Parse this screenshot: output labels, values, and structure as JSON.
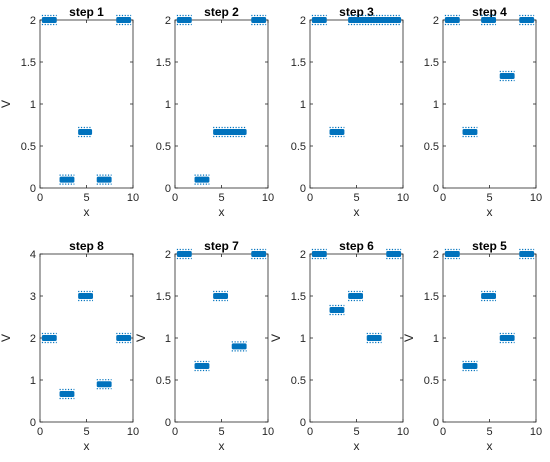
{
  "chart_data": [
    {
      "type": "scatter",
      "title": "step 1",
      "xlabel": "x",
      "ylabel": "V",
      "xlim": [
        0,
        10
      ],
      "ylim": [
        0,
        2
      ],
      "xticks": [
        "0",
        "5",
        "10"
      ],
      "yticks": [
        "0",
        "0.5",
        "1",
        "1.5",
        "2"
      ],
      "segments": [
        {
          "x": [
            0.2,
            1.8
          ],
          "y": 2
        },
        {
          "x": [
            2.1,
            3.7
          ],
          "y": 0.1
        },
        {
          "x": [
            4.1,
            5.6
          ],
          "y": 0.667
        },
        {
          "x": [
            6.1,
            7.7
          ],
          "y": 0.1
        },
        {
          "x": [
            8.2,
            9.8
          ],
          "y": 2
        }
      ],
      "marker_color": "#0072BD"
    },
    {
      "type": "scatter",
      "title": "step 2",
      "xlabel": "x",
      "ylabel": "",
      "xlim": [
        0,
        10
      ],
      "ylim": [
        0,
        2
      ],
      "xticks": [
        "0",
        "5",
        "10"
      ],
      "yticks": [
        "0",
        "0.5",
        "1",
        "1.5",
        "2"
      ],
      "segments": [
        {
          "x": [
            0.2,
            1.8
          ],
          "y": 2
        },
        {
          "x": [
            2.1,
            3.7
          ],
          "y": 0.1
        },
        {
          "x": [
            4.1,
            7.7
          ],
          "y": 0.667
        },
        {
          "x": [
            8.2,
            9.8
          ],
          "y": 2
        }
      ],
      "marker_color": "#0072BD"
    },
    {
      "type": "scatter",
      "title": "step 3",
      "xlabel": "x",
      "ylabel": "",
      "xlim": [
        0,
        10
      ],
      "ylim": [
        0,
        2
      ],
      "xticks": [
        "0",
        "5",
        "10"
      ],
      "yticks": [
        "0",
        "0.5",
        "1",
        "1.5",
        "2"
      ],
      "segments": [
        {
          "x": [
            0.2,
            1.8
          ],
          "y": 2
        },
        {
          "x": [
            2.1,
            3.7
          ],
          "y": 0.667
        },
        {
          "x": [
            4.1,
            9.8
          ],
          "y": 2
        }
      ],
      "marker_color": "#0072BD"
    },
    {
      "type": "scatter",
      "title": "step 4",
      "xlabel": "x",
      "ylabel": "",
      "xlim": [
        0,
        10
      ],
      "ylim": [
        0,
        2
      ],
      "xticks": [
        "0",
        "5",
        "10"
      ],
      "yticks": [
        "0",
        "0.5",
        "1",
        "1.5",
        "2"
      ],
      "segments": [
        {
          "x": [
            0.2,
            1.8
          ],
          "y": 2
        },
        {
          "x": [
            2.1,
            3.7
          ],
          "y": 0.667
        },
        {
          "x": [
            4.1,
            5.7
          ],
          "y": 2
        },
        {
          "x": [
            6.1,
            7.7
          ],
          "y": 1.333
        },
        {
          "x": [
            8.2,
            9.8
          ],
          "y": 2
        }
      ],
      "marker_color": "#0072BD"
    },
    {
      "type": "scatter",
      "title": "step 8",
      "xlabel": "x",
      "ylabel": "V",
      "xlim": [
        0,
        10
      ],
      "ylim": [
        0,
        4
      ],
      "xticks": [
        "0",
        "5",
        "10"
      ],
      "yticks": [
        "0",
        "1",
        "2",
        "3",
        "4"
      ],
      "segments": [
        {
          "x": [
            0.2,
            1.8
          ],
          "y": 2
        },
        {
          "x": [
            2.1,
            3.7
          ],
          "y": 0.667
        },
        {
          "x": [
            4.1,
            5.7
          ],
          "y": 3
        },
        {
          "x": [
            6.1,
            7.7
          ],
          "y": 0.9
        },
        {
          "x": [
            8.2,
            9.8
          ],
          "y": 2
        }
      ],
      "marker_color": "#0072BD"
    },
    {
      "type": "scatter",
      "title": "step 7",
      "xlabel": "x",
      "ylabel": "V",
      "xlim": [
        0,
        10
      ],
      "ylim": [
        0,
        2
      ],
      "xticks": [
        "0",
        "5",
        "10"
      ],
      "yticks": [
        "0",
        "0.5",
        "1",
        "1.5",
        "2"
      ],
      "segments": [
        {
          "x": [
            0.2,
            1.8
          ],
          "y": 2
        },
        {
          "x": [
            2.1,
            3.7
          ],
          "y": 0.667
        },
        {
          "x": [
            4.1,
            5.7
          ],
          "y": 1.5
        },
        {
          "x": [
            6.1,
            7.7
          ],
          "y": 0.9
        },
        {
          "x": [
            8.2,
            9.8
          ],
          "y": 2
        }
      ],
      "marker_color": "#0072BD"
    },
    {
      "type": "scatter",
      "title": "step 6",
      "xlabel": "x",
      "ylabel": "V",
      "xlim": [
        0,
        10
      ],
      "ylim": [
        0,
        2
      ],
      "xticks": [
        "0",
        "5",
        "10"
      ],
      "yticks": [
        "0",
        "0.5",
        "1",
        "1.5",
        "2"
      ],
      "segments": [
        {
          "x": [
            0.2,
            1.8
          ],
          "y": 2
        },
        {
          "x": [
            2.1,
            3.7
          ],
          "y": 1.333
        },
        {
          "x": [
            4.1,
            5.7
          ],
          "y": 1.5
        },
        {
          "x": [
            6.1,
            7.7
          ],
          "y": 1
        },
        {
          "x": [
            8.2,
            9.8
          ],
          "y": 2
        }
      ],
      "marker_color": "#0072BD"
    },
    {
      "type": "scatter",
      "title": "step 5",
      "xlabel": "x",
      "ylabel": "V",
      "xlim": [
        0,
        10
      ],
      "ylim": [
        0,
        2
      ],
      "xticks": [
        "0",
        "5",
        "10"
      ],
      "yticks": [
        "0",
        "0.5",
        "1",
        "1.5",
        "2"
      ],
      "segments": [
        {
          "x": [
            0.2,
            1.8
          ],
          "y": 2
        },
        {
          "x": [
            2.1,
            3.7
          ],
          "y": 0.667
        },
        {
          "x": [
            4.1,
            5.7
          ],
          "y": 1.5
        },
        {
          "x": [
            6.1,
            7.7
          ],
          "y": 1
        },
        {
          "x": [
            8.2,
            9.8
          ],
          "y": 2
        }
      ],
      "marker_color": "#0072BD"
    }
  ]
}
